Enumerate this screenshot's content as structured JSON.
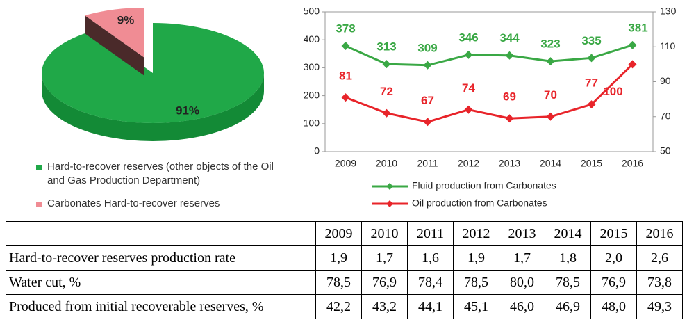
{
  "chart_data": [
    {
      "type": "pie",
      "categories": [
        "Hard-to-recover reserves (other objects of the Oil and Gas Production Department)",
        "Carbonates Hard-to-recover reserves"
      ],
      "values": [
        91,
        9
      ],
      "value_labels": [
        "91%",
        "9%"
      ],
      "colors": [
        "#20a848",
        "#f08c94"
      ]
    },
    {
      "type": "line",
      "categories": [
        "2009",
        "2010",
        "2011",
        "2012",
        "2013",
        "2014",
        "2015",
        "2016"
      ],
      "ylim": [
        0,
        500
      ],
      "yticks": [
        0,
        100,
        200,
        300,
        400,
        500
      ],
      "y2lim": [
        50,
        130
      ],
      "y2ticks": [
        50,
        70,
        90,
        110,
        130
      ],
      "series": [
        {
          "name": "Fluid production from Carbonates",
          "color": "#3aa845",
          "values": [
            378,
            313,
            309,
            346,
            344,
            323,
            335,
            381
          ]
        },
        {
          "name": "Oil production from Carbonates",
          "color": "#e8242a",
          "axis": "y2",
          "values": [
            81,
            72,
            67,
            74,
            69,
            70,
            77,
            100
          ]
        }
      ]
    }
  ],
  "table": {
    "columns": [
      "2009",
      "2010",
      "2011",
      "2012",
      "2013",
      "2014",
      "2015",
      "2016"
    ],
    "rows": [
      {
        "label": "Hard-to-recover reserves production rate",
        "values": [
          "1,9",
          "1,7",
          "1,6",
          "1,9",
          "1,7",
          "1,8",
          "2,0",
          "2,6"
        ]
      },
      {
        "label": "Water cut, %",
        "values": [
          "78,5",
          "76,9",
          "78,4",
          "78,5",
          "80,0",
          "78,5",
          "76,9",
          "73,8"
        ]
      },
      {
        "label": "Produced from initial recoverable reserves, %",
        "values": [
          "42,2",
          "43,2",
          "44,1",
          "45,1",
          "46,0",
          "46,9",
          "48,0",
          "49,3"
        ]
      }
    ]
  }
}
